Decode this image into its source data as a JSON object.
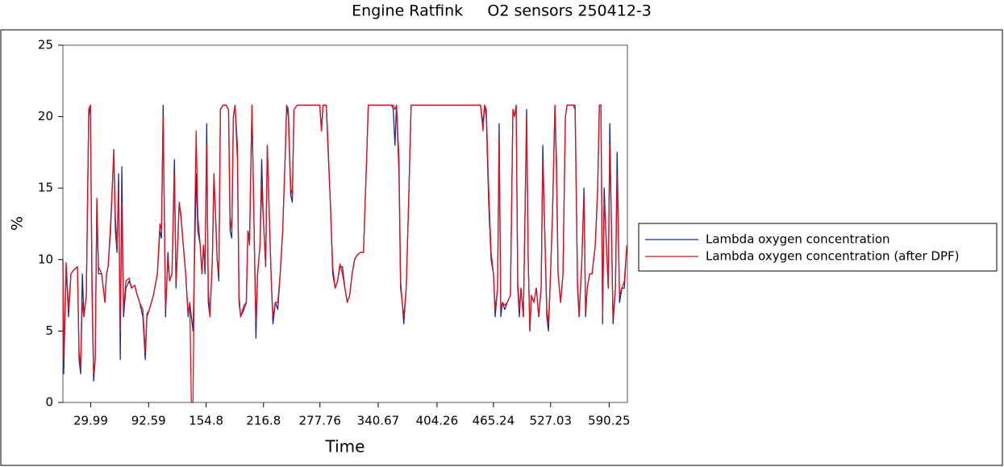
{
  "chart_data": {
    "type": "line",
    "title": "Engine Ratfink     O2 sensors 250412-3",
    "xlabel": "Time",
    "ylabel": "%",
    "x": [
      0,
      0.9,
      3.5,
      6.1,
      8.7,
      12.2,
      15.7,
      17.5,
      19.2,
      21,
      22.7,
      25.3,
      27.9,
      29.7,
      31.4,
      33.2,
      34.9,
      36.7,
      38.4,
      41.9,
      45.4,
      47.1,
      48.9,
      51.5,
      55,
      56.7,
      58.5,
      60.2,
      62,
      63.7,
      65.5,
      68.1,
      71.6,
      74.2,
      77.7,
      80.3,
      82.9,
      86.4,
      89,
      90.8,
      93.4,
      97.8,
      102.1,
      104.8,
      106.5,
      108.3,
      110.9,
      113.5,
      115.2,
      117.9,
      120.5,
      122.2,
      124,
      125.7,
      127.5,
      130.1,
      132.7,
      135.3,
      137.1,
      138.8,
      140.6,
      142.3,
      144,
      145.8,
      148.4,
      150.2,
      151.9,
      153.6,
      155.4,
      157.1,
      158.9,
      161.5,
      163.2,
      165,
      166.7,
      168.5,
      170.2,
      172.9,
      176.3,
      179,
      180.7,
      182.5,
      184.2,
      186,
      188.6,
      190.3,
      192.1,
      195.6,
      198.2,
      199.9,
      201.7,
      204.3,
      206.9,
      208.6,
      210.4,
      213,
      214.8,
      216.5,
      219.1,
      220.9,
      223.5,
      225.2,
      227,
      229.6,
      232.2,
      234.8,
      237.5,
      240.1,
      241.8,
      243.6,
      246.2,
      247.9,
      249.7,
      253.2,
      277.6,
      279.4,
      281.1,
      284.6,
      286.3,
      289,
      291.6,
      294.2,
      296.8,
      299.4,
      302.1,
      304.7,
      307.3,
      309.9,
      312.5,
      315.2,
      317.8,
      321.3,
      324.8,
      328.2,
      330,
      355.3,
      357,
      358.8,
      360.5,
      363.2,
      364.9,
      366.7,
      368.4,
      371,
      373.6,
      376.3,
      451.3,
      454,
      455.7,
      457.5,
      460.1,
      462.7,
      465.3,
      467.1,
      469.7,
      471.4,
      473.2,
      474.9,
      477.5,
      480.2,
      483.6,
      486.3,
      488,
      489.8,
      491.5,
      493.2,
      495,
      497.6,
      501.1,
      502.8,
      504.6,
      506.3,
      509,
      511.6,
      514.2,
      516.8,
      518.6,
      520.3,
      522.9,
      524.7,
      526.4,
      529,
      531.7,
      533.4,
      535.1,
      537.8,
      540.4,
      543,
      544.8,
      551.7,
      553.5,
      556.1,
      557.8,
      560.5,
      563.1,
      564.8,
      566.6,
      569.2,
      571.8,
      575.3,
      577.9,
      579.7,
      581.4,
      583.2,
      584.9,
      586.7,
      589.3,
      591,
      592.8,
      594.5,
      597.1,
      598.9,
      601.5,
      604.1,
      606.7,
      609.4
    ],
    "series": [
      {
        "name": "Lambda oxygen concentration",
        "color": "#1a2a8c",
        "values": [
          10,
          2,
          9.5,
          6,
          9,
          9.3,
          9.5,
          3,
          2,
          9,
          6,
          7.5,
          20,
          20.8,
          8,
          1.5,
          3,
          14,
          9,
          9,
          7,
          9,
          9.5,
          12,
          17.7,
          12,
          10.5,
          16,
          3,
          16.5,
          6,
          8,
          8.5,
          8,
          8.2,
          7.5,
          7,
          6,
          3,
          6,
          6.5,
          7.5,
          9,
          12,
          11.5,
          20.8,
          6,
          10.5,
          8.5,
          9,
          17,
          8,
          11,
          14,
          13,
          11,
          9,
          6,
          7,
          6,
          5,
          10,
          16,
          12,
          11,
          9,
          11,
          9,
          19.5,
          7,
          6,
          10,
          16,
          13,
          10,
          8.5,
          20.5,
          20.8,
          20.8,
          20.5,
          12,
          11.5,
          20,
          20.8,
          17,
          7,
          6,
          6.5,
          7,
          12,
          11.5,
          20.8,
          11,
          4.5,
          9,
          11,
          17,
          13,
          9.5,
          18,
          12,
          8.5,
          5.5,
          7,
          6.5,
          9,
          12,
          17,
          20.8,
          20,
          14.5,
          14,
          20.5,
          20.8,
          20.8,
          19,
          20.8,
          20.8,
          18,
          14,
          9,
          8,
          8.5,
          9.5,
          9.5,
          8,
          7,
          7.5,
          9,
          10,
          10.3,
          10.5,
          10.5,
          17,
          20.8,
          20.8,
          20.5,
          18,
          20.8,
          16,
          8,
          7,
          5.5,
          8,
          14,
          20.8,
          20.8,
          19.5,
          20.8,
          20,
          14,
          10,
          9,
          6,
          8,
          19.5,
          6,
          7,
          6.5,
          7,
          7.5,
          20.5,
          20,
          20.8,
          8,
          6,
          8,
          6,
          20.5,
          10,
          5,
          7.5,
          7,
          8,
          6,
          8,
          18,
          13,
          6,
          5,
          8,
          13,
          20.8,
          16,
          9,
          7,
          9,
          20,
          20.8,
          20.8,
          20.5,
          8,
          6,
          9.5,
          15,
          6,
          8,
          9,
          9,
          11,
          15,
          20.8,
          20.8,
          5.5,
          15,
          12,
          8,
          19.5,
          12,
          5.5,
          8,
          17.5,
          7,
          8,
          8,
          11
        ]
      },
      {
        "name": "Lambda oxygen concentration (after DPF)",
        "color": "#e0101e",
        "values": [
          9.8,
          3,
          9.8,
          6.5,
          9,
          9.3,
          9.5,
          3.5,
          2.5,
          7,
          6,
          7.5,
          20.5,
          20.8,
          9,
          2,
          3,
          14.3,
          9.5,
          9,
          7,
          9,
          9.5,
          12.5,
          17.5,
          13,
          11,
          15,
          5,
          14,
          6.5,
          8.5,
          8.7,
          8,
          8.2,
          7.5,
          7,
          6.5,
          3.5,
          6.2,
          6.5,
          7.5,
          9,
          12.5,
          12,
          20,
          6.5,
          10,
          8.5,
          9,
          16,
          8.5,
          11,
          14,
          13.2,
          11,
          9,
          6.2,
          7,
          0,
          0,
          12,
          19,
          13,
          11,
          9,
          11,
          9.5,
          18,
          8,
          6,
          10,
          16,
          13,
          10,
          9,
          20.5,
          20.8,
          20.8,
          20.5,
          13,
          12,
          20,
          20.8,
          18,
          7.5,
          6,
          6.8,
          7,
          12,
          11,
          20.8,
          11,
          5.5,
          9,
          11,
          15,
          13,
          9.7,
          18,
          12,
          8.5,
          6,
          7,
          7,
          9,
          12,
          17,
          20.8,
          20.5,
          15,
          14.5,
          20.5,
          20.8,
          20.8,
          19,
          20.8,
          20.8,
          18.5,
          14,
          9.5,
          8,
          8.5,
          9.7,
          9,
          8,
          7,
          7.5,
          9,
          10,
          10.3,
          10.5,
          10.5,
          17,
          20.8,
          20.8,
          20.8,
          20.5,
          20.8,
          17,
          8.5,
          7,
          6,
          8,
          14,
          20.8,
          20.8,
          19,
          20.8,
          20.5,
          15,
          10.5,
          9,
          6.5,
          8,
          18.5,
          6.5,
          7,
          6.8,
          7,
          7.5,
          20.5,
          20,
          20.8,
          8.5,
          6.5,
          8,
          6,
          20,
          10,
          5,
          7.5,
          7,
          8,
          6,
          8,
          17,
          13,
          6.5,
          5.5,
          8,
          13,
          20.8,
          17,
          9,
          7,
          9,
          20,
          20.8,
          20.8,
          20.8,
          8.5,
          6,
          9.5,
          14.5,
          6.5,
          8,
          9,
          9,
          11,
          15,
          20.8,
          20.8,
          6,
          14,
          12,
          8,
          18,
          12,
          6,
          8,
          16,
          7.5,
          8,
          8.5,
          11
        ]
      }
    ],
    "xlim": [
      0,
      610
    ],
    "xticks": [
      29.99,
      92.59,
      154.8,
      216.8,
      277.76,
      340.67,
      404.26,
      465.24,
      527.03,
      590.25
    ],
    "ylim": [
      0,
      25
    ],
    "yticks": [
      0,
      5,
      10,
      15,
      20,
      25
    ],
    "grid": false,
    "legend": "right"
  }
}
